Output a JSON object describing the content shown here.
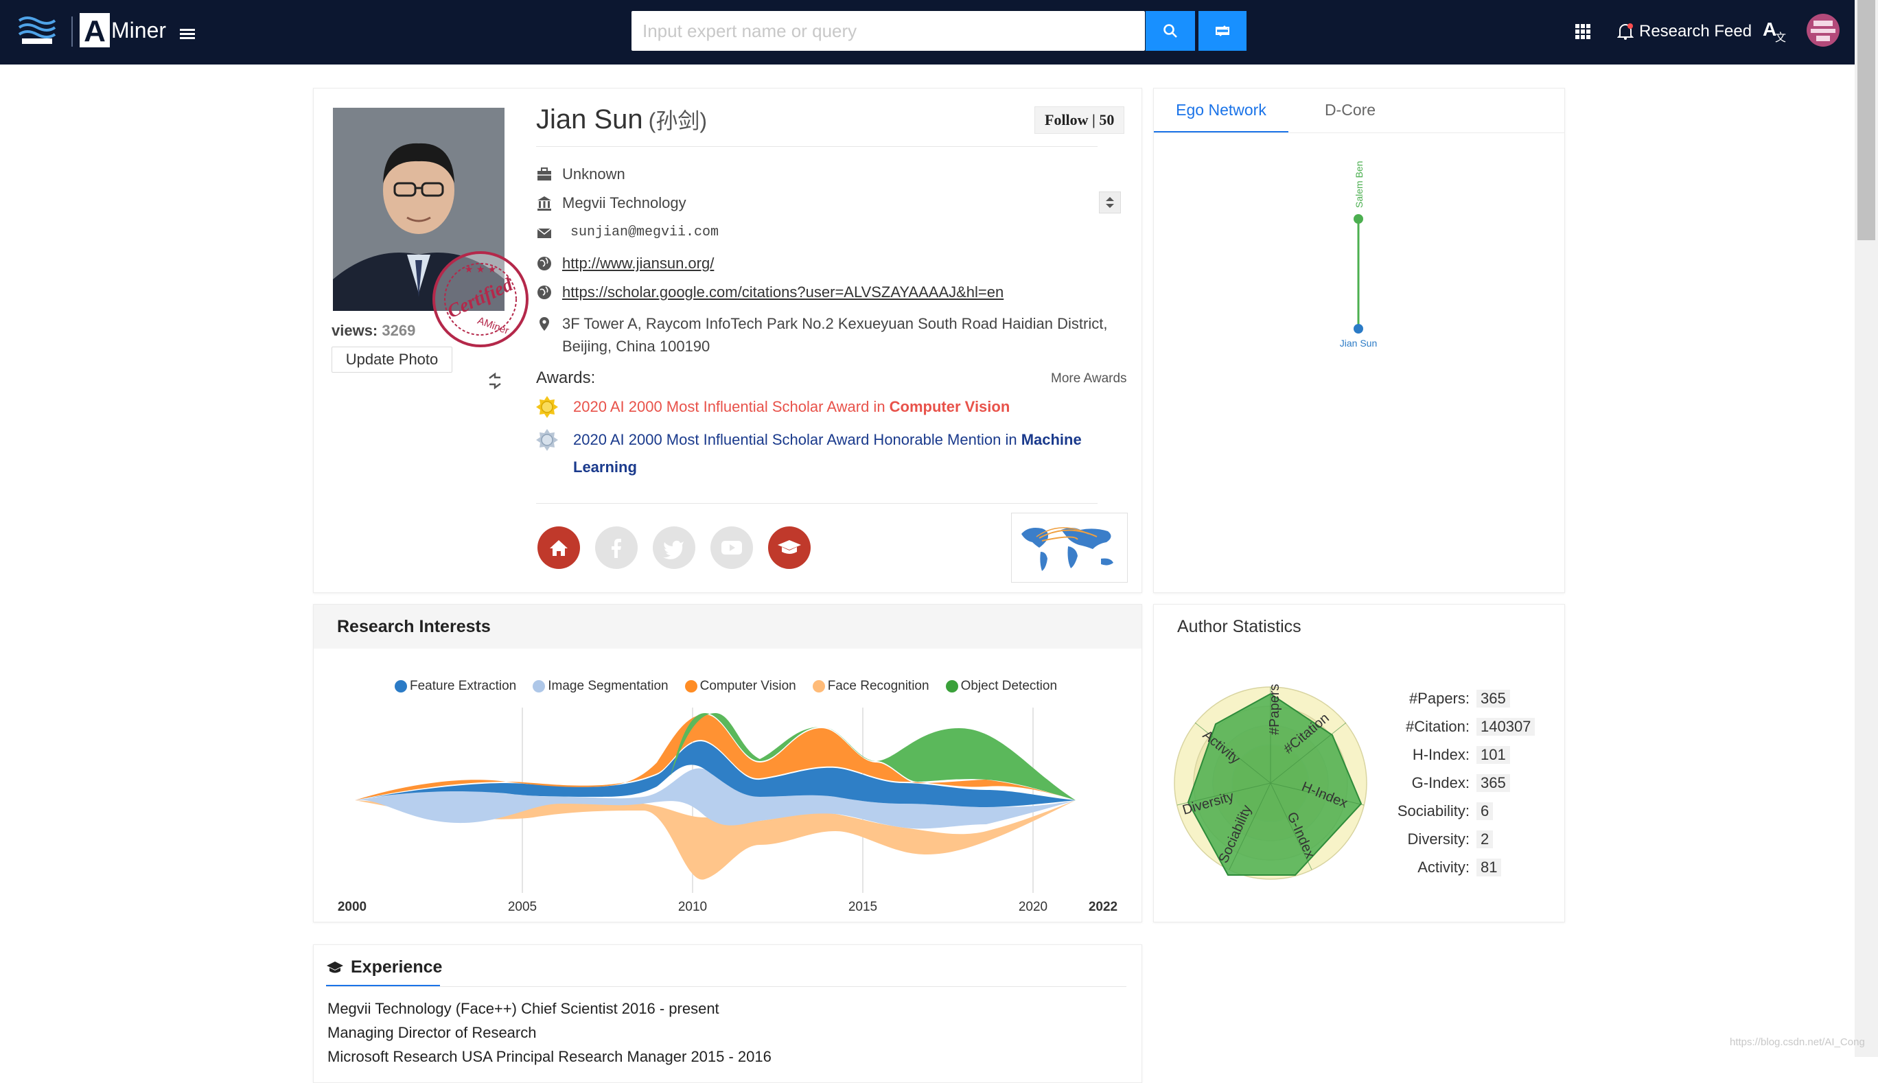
{
  "nav": {
    "brand": "Miner",
    "search_placeholder": "Input expert name or query",
    "research_feed": "Research Feed"
  },
  "profile": {
    "name": "Jian Sun",
    "name_cn": "(孙剑)",
    "follow_label": "Follow | 50",
    "views_label": "views:",
    "views_count": "3269",
    "update_photo": "Update Photo",
    "certified_stamp": "Certified AMiner",
    "position": "Unknown",
    "affiliation": "Megvii Technology",
    "email": "sunjian@megvii.com",
    "homepage": "http://www.jiansun.org/",
    "scholar": "https://scholar.google.com/citations?user=ALVSZAYAAAAJ&hl=en",
    "address_line1": "3F Tower A, Raycom InfoTech Park No.2 Kexueyuan South Road Haidian District,",
    "address_line2": "Beijing, China 100190"
  },
  "awards": {
    "title": "Awards:",
    "more": "More Awards",
    "items": [
      {
        "text": "2020 AI 2000 Most Influential Scholar Award in ",
        "field": "Computer Vision",
        "medal": "gold"
      },
      {
        "text": "2020 AI 2000 Most Influential Scholar Award Honorable Mention in ",
        "field": "Machine",
        "field2": "Learning",
        "medal": "silver"
      }
    ]
  },
  "social_icons": [
    "home-icon",
    "facebook-icon",
    "twitter-icon",
    "youtube-icon",
    "scholar-cap-icon"
  ],
  "ego_network": {
    "tabs": [
      "Ego Network",
      "D-Core"
    ],
    "active_tab": "Ego Network",
    "nodes": [
      {
        "label": "Salem Ben",
        "color": "#4caf50"
      },
      {
        "label": "Jian Sun",
        "color": "#2b7bc6"
      }
    ]
  },
  "research_interests": {
    "title": "Research Interests",
    "chart_data": {
      "type": "area",
      "subtype": "streamgraph",
      "x_ticks": [
        "2000",
        "2005",
        "2010",
        "2015",
        "2020",
        "2022"
      ],
      "x_range": [
        2000,
        2022
      ],
      "legend_position": "top",
      "series": [
        {
          "name": "Feature Extraction",
          "color": "#2b7bc6"
        },
        {
          "name": "Image Segmentation",
          "color": "#aec7e8"
        },
        {
          "name": "Computer Vision",
          "color": "#ff8c24"
        },
        {
          "name": "Face Recognition",
          "color": "#ffbb78"
        },
        {
          "name": "Object Detection",
          "color": "#3aa13a"
        }
      ]
    }
  },
  "author_statistics": {
    "title": "Author Statistics",
    "chart_data": {
      "type": "radar",
      "axes": [
        "#Papers",
        "#Citation",
        "H-Index",
        "G-Index",
        "Sociability",
        "Diversity",
        "Activity"
      ],
      "fill_color": "#4caf50"
    },
    "rows": [
      {
        "label": "#Papers:",
        "value": "365"
      },
      {
        "label": "#Citation:",
        "value": "140307"
      },
      {
        "label": "H-Index:",
        "value": "101"
      },
      {
        "label": "G-Index:",
        "value": "365"
      },
      {
        "label": "Sociability:",
        "value": "6"
      },
      {
        "label": "Diversity:",
        "value": "2"
      },
      {
        "label": "Activity:",
        "value": "81"
      }
    ]
  },
  "experience": {
    "title": "Experience",
    "lines": [
      "Megvii Technology (Face++) Chief Scientist 2016 - present",
      "Managing Director of Research",
      "Microsoft Research USA Principal Research Manager 2015 - 2016"
    ]
  },
  "watermark": "https://blog.csdn.net/AI_Cong"
}
